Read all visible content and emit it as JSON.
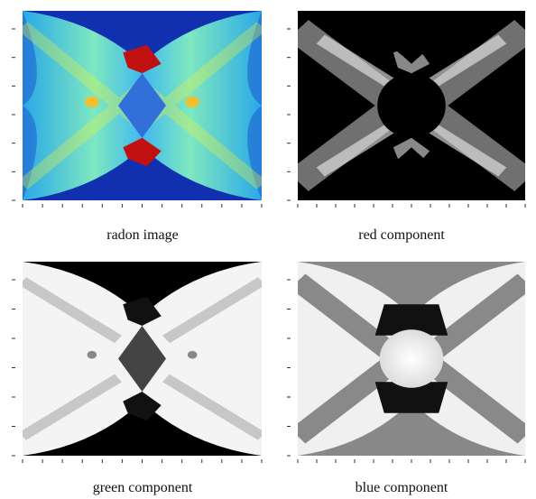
{
  "figures": [
    {
      "caption": "radon image"
    },
    {
      "caption": "red component"
    },
    {
      "caption": "green component"
    },
    {
      "caption": "blue component"
    }
  ]
}
